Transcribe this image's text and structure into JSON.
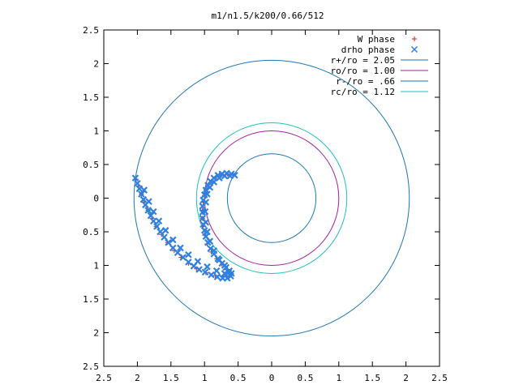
{
  "chart_data": {
    "type": "scatter",
    "title": "m1/n1.5/k200/0.66/512",
    "xlabel": "",
    "ylabel": "",
    "xlim": [
      -2.5,
      2.5
    ],
    "ylim": [
      -2.5,
      2.5
    ],
    "grid": false,
    "legend_position": "top-right",
    "x_ticks": [
      -2.5,
      -2,
      -1.5,
      -1,
      -0.5,
      0,
      0.5,
      1,
      1.5,
      2,
      2.5
    ],
    "y_ticks": [
      -2.5,
      -2,
      -1.5,
      -1,
      -0.5,
      0,
      0.5,
      1,
      1.5,
      2,
      2.5
    ],
    "x_tick_labels": [
      "2.5",
      "2",
      "1.5",
      "1",
      "0.5",
      "0",
      "0.5",
      "1",
      "1.5",
      "2",
      "2.5"
    ],
    "y_tick_labels": [
      "2.5",
      "2",
      "1.5",
      "1",
      "0.5",
      "0",
      "0.5",
      "1",
      "1.5",
      "2",
      "2.5"
    ],
    "circles": [
      {
        "name": "r+/ro = 2.05",
        "radius": 2.05,
        "color": "#1f77b4"
      },
      {
        "name": "ro/ro = 1.00",
        "radius": 1.0,
        "color": "#a020a0"
      },
      {
        "name": "r-/ro = .66",
        "radius": 0.66,
        "color": "#1f77b4"
      },
      {
        "name": "rc/ro = 1.12",
        "radius": 1.12,
        "color": "#20c0c0"
      }
    ],
    "series": [
      {
        "name": "W phase",
        "marker": "+",
        "color": "#e0201b",
        "points": [
          [
            -2.02,
            0.28
          ],
          [
            -1.98,
            0.18
          ],
          [
            -1.94,
            0.06
          ],
          [
            -1.9,
            -0.06
          ],
          [
            -1.84,
            -0.18
          ],
          [
            -1.78,
            -0.3
          ],
          [
            -1.72,
            -0.42
          ],
          [
            -1.64,
            -0.54
          ],
          [
            -1.55,
            -0.66
          ],
          [
            -1.45,
            -0.78
          ],
          [
            -1.35,
            -0.88
          ],
          [
            -1.24,
            -0.97
          ],
          [
            -1.12,
            -1.05
          ],
          [
            -0.98,
            -1.11
          ],
          [
            -0.84,
            -1.15
          ],
          [
            -0.72,
            -1.17
          ],
          [
            -0.64,
            -1.16
          ],
          [
            -0.6,
            -1.12
          ],
          [
            -0.66,
            -1.06
          ],
          [
            -0.74,
            -0.98
          ],
          [
            -0.82,
            -0.9
          ],
          [
            -0.9,
            -0.8
          ],
          [
            -0.96,
            -0.68
          ],
          [
            -1.0,
            -0.55
          ],
          [
            -1.02,
            -0.42
          ],
          [
            -1.03,
            -0.3
          ],
          [
            -1.03,
            -0.18
          ],
          [
            -1.02,
            -0.06
          ],
          [
            -1.0,
            0.04
          ],
          [
            -0.98,
            0.12
          ],
          [
            -0.94,
            0.2
          ],
          [
            -0.88,
            0.26
          ],
          [
            -0.82,
            0.32
          ],
          [
            -0.74,
            0.35
          ],
          [
            -0.66,
            0.36
          ],
          [
            -0.58,
            0.35
          ]
        ]
      },
      {
        "name": "drho phase",
        "marker": "x",
        "color": "#2f80e0",
        "points": [
          [
            -2.03,
            0.3
          ],
          [
            -2.0,
            0.22
          ],
          [
            -1.97,
            0.14
          ],
          [
            -1.94,
            0.06
          ],
          [
            -1.91,
            -0.02
          ],
          [
            -1.88,
            -0.1
          ],
          [
            -1.84,
            -0.18
          ],
          [
            -1.8,
            -0.26
          ],
          [
            -1.76,
            -0.34
          ],
          [
            -1.71,
            -0.42
          ],
          [
            -1.66,
            -0.5
          ],
          [
            -1.6,
            -0.58
          ],
          [
            -1.54,
            -0.66
          ],
          [
            -1.47,
            -0.74
          ],
          [
            -1.4,
            -0.81
          ],
          [
            -1.32,
            -0.88
          ],
          [
            -1.24,
            -0.95
          ],
          [
            -1.16,
            -1.01
          ],
          [
            -1.08,
            -1.06
          ],
          [
            -0.99,
            -1.1
          ],
          [
            -0.9,
            -1.14
          ],
          [
            -0.81,
            -1.17
          ],
          [
            -0.73,
            -1.19
          ],
          [
            -0.66,
            -1.19
          ],
          [
            -0.61,
            -1.16
          ],
          [
            -0.6,
            -1.12
          ],
          [
            -0.63,
            -1.08
          ],
          [
            -0.68,
            -1.03
          ],
          [
            -0.74,
            -0.97
          ],
          [
            -0.8,
            -0.9
          ],
          [
            -0.86,
            -0.83
          ],
          [
            -0.91,
            -0.75
          ],
          [
            -0.95,
            -0.66
          ],
          [
            -0.98,
            -0.57
          ],
          [
            -1.0,
            -0.48
          ],
          [
            -1.02,
            -0.39
          ],
          [
            -1.03,
            -0.3
          ],
          [
            -1.03,
            -0.21
          ],
          [
            -1.03,
            -0.12
          ],
          [
            -1.02,
            -0.03
          ],
          [
            -1.0,
            0.05
          ],
          [
            -0.98,
            0.12
          ],
          [
            -0.95,
            0.19
          ],
          [
            -0.91,
            0.25
          ],
          [
            -0.86,
            0.3
          ],
          [
            -0.8,
            0.34
          ],
          [
            -0.74,
            0.36
          ],
          [
            -0.67,
            0.37
          ],
          [
            -0.6,
            0.36
          ],
          [
            -0.55,
            0.34
          ],
          [
            -1.9,
            0.12
          ],
          [
            -1.83,
            -0.05
          ],
          [
            -1.76,
            -0.2
          ],
          [
            -1.68,
            -0.34
          ],
          [
            -1.58,
            -0.48
          ],
          [
            -1.47,
            -0.62
          ],
          [
            -1.36,
            -0.74
          ],
          [
            -1.24,
            -0.84
          ],
          [
            -1.1,
            -0.94
          ],
          [
            -0.96,
            -1.02
          ],
          [
            -0.82,
            -1.08
          ],
          [
            -0.7,
            -1.12
          ],
          [
            -0.64,
            -1.1
          ],
          [
            -0.7,
            -1.0
          ],
          [
            -0.78,
            -0.92
          ],
          [
            -0.86,
            -0.78
          ],
          [
            -0.92,
            -0.64
          ],
          [
            -0.96,
            -0.5
          ],
          [
            -0.98,
            -0.36
          ],
          [
            -0.99,
            -0.2
          ],
          [
            -0.98,
            -0.06
          ],
          [
            -0.96,
            0.06
          ],
          [
            -0.92,
            0.16
          ],
          [
            -0.86,
            0.24
          ],
          [
            -0.78,
            0.3
          ],
          [
            -0.7,
            0.33
          ],
          [
            -0.62,
            0.33
          ]
        ]
      }
    ]
  }
}
